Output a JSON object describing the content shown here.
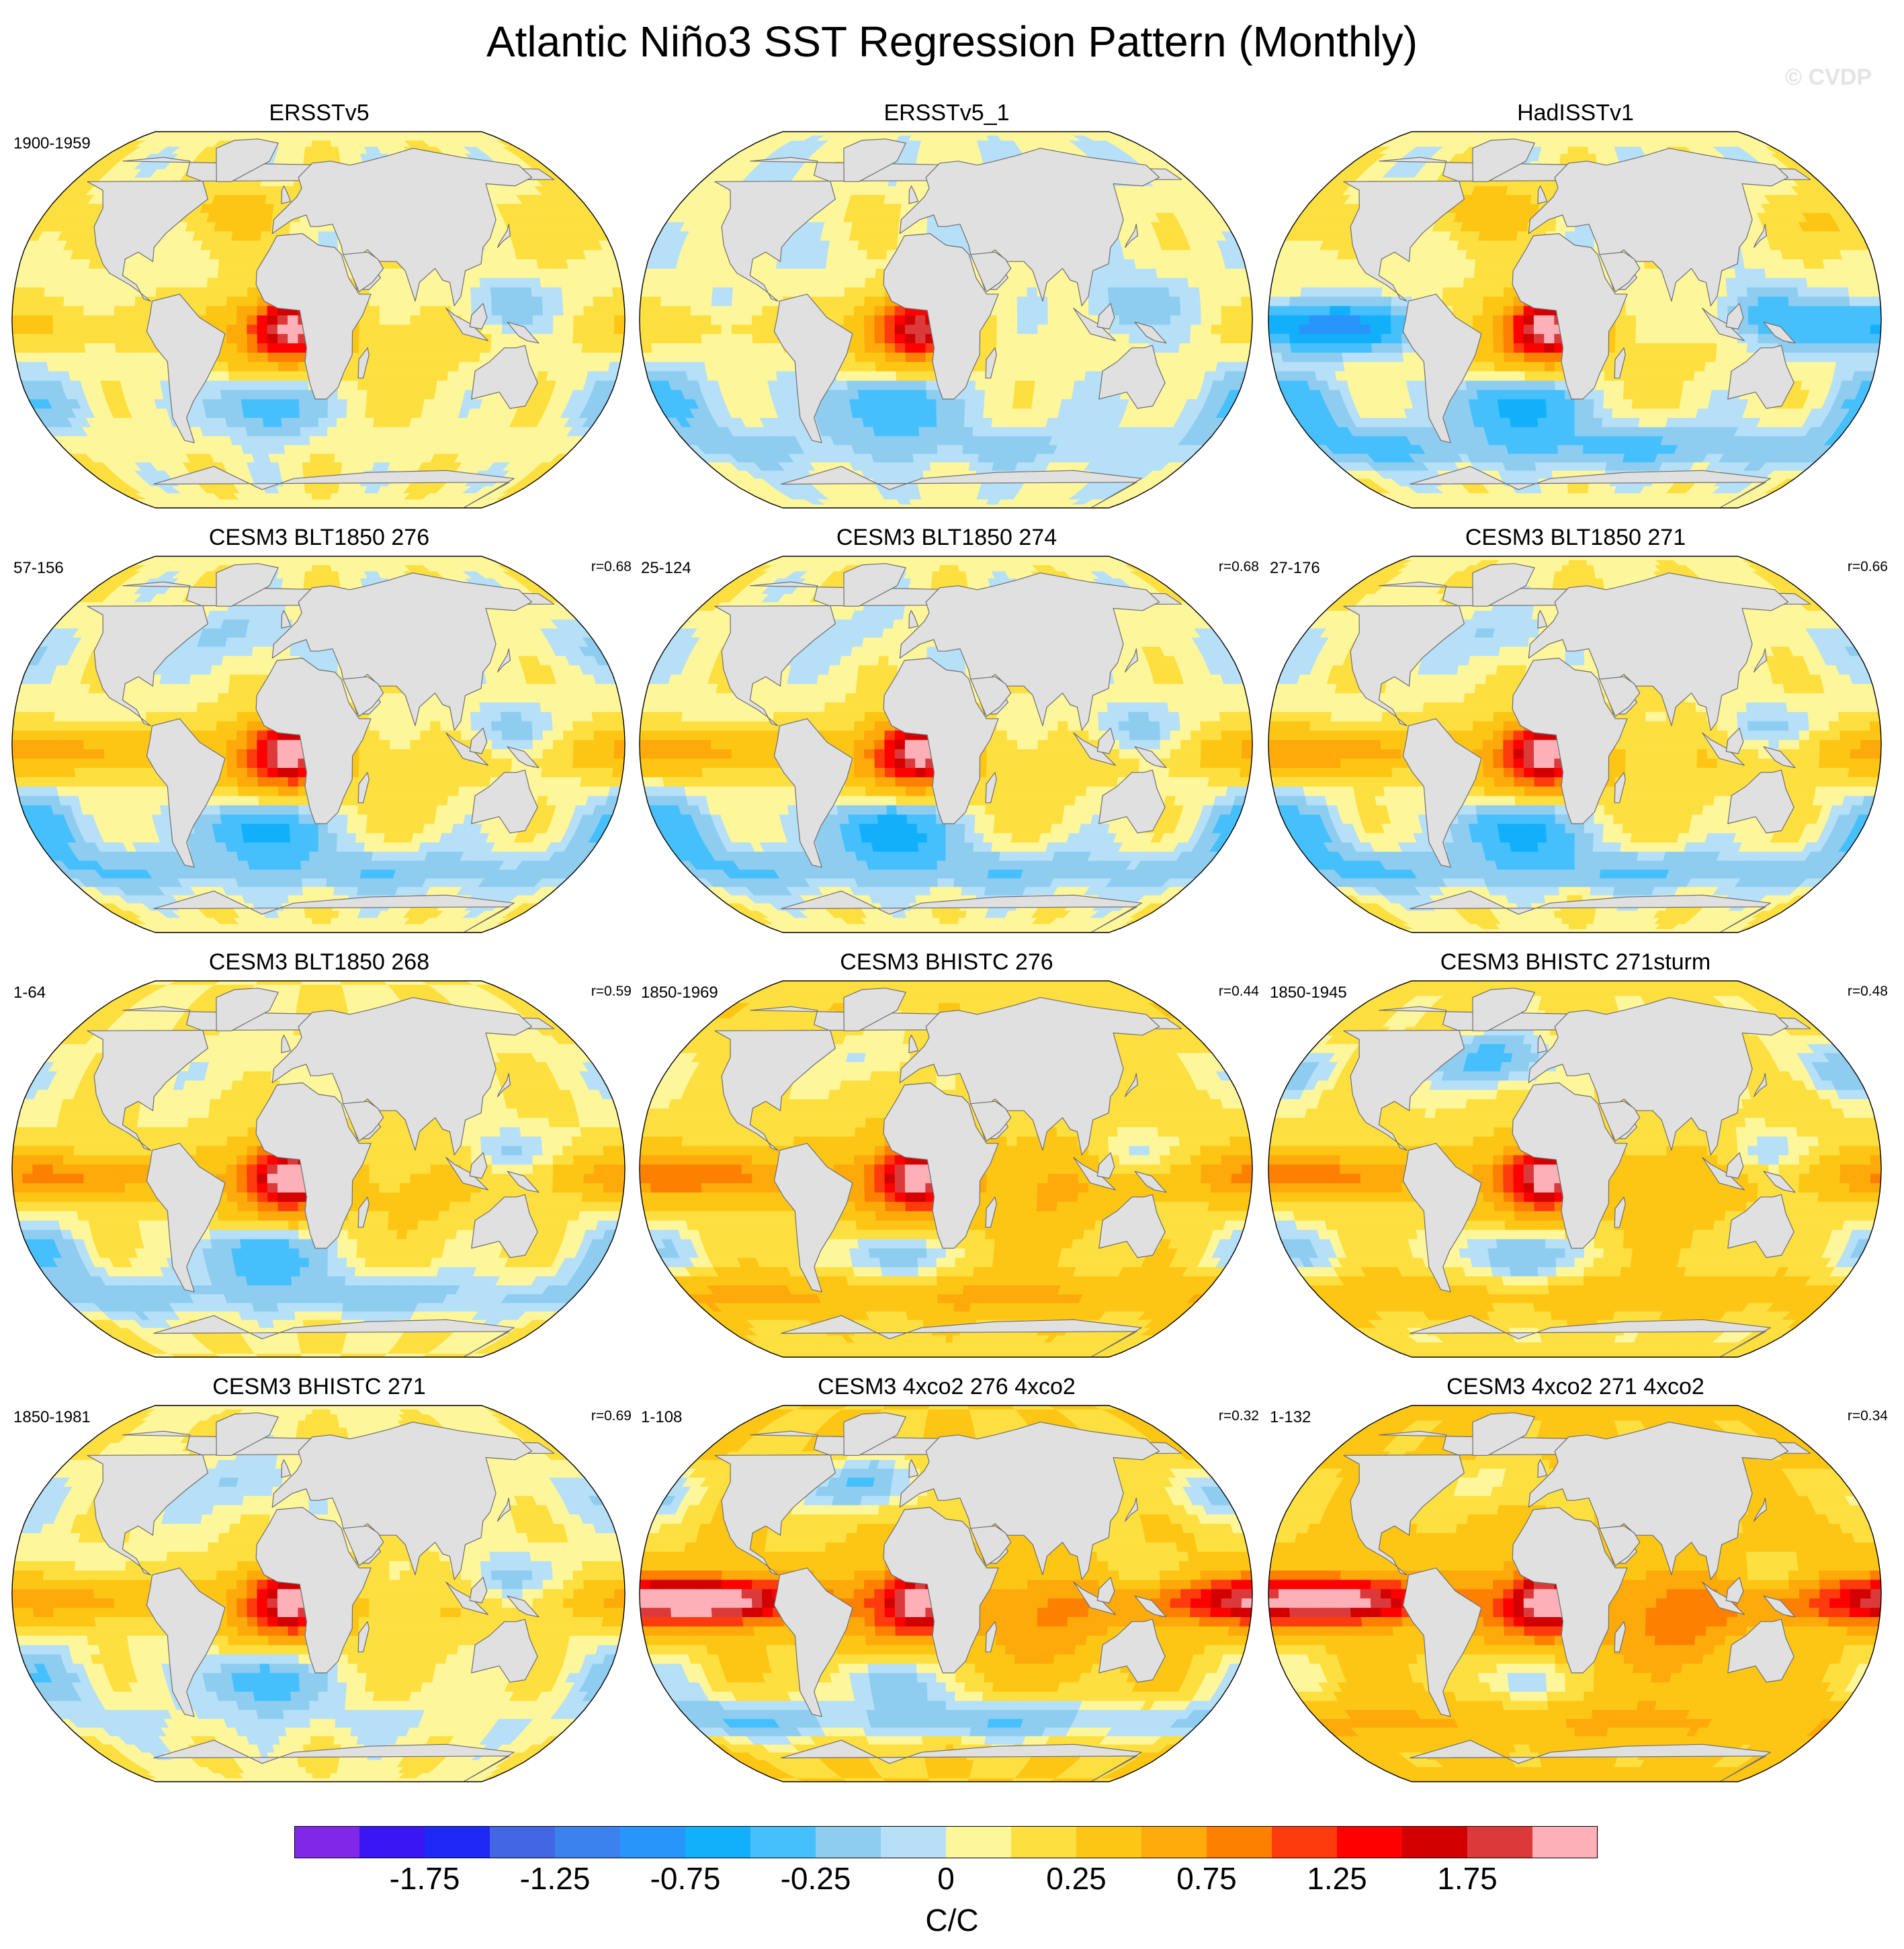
{
  "figure": {
    "title": "Atlantic Niño3 SST Regression Pattern (Monthly)",
    "watermark": "© CVDP"
  },
  "chart_data": {
    "type": "heatmap",
    "projection": "Robinson (global)",
    "variable": "SST regression onto Atlantic Niño3 index",
    "colors": {
      "land": "#e0e0e0",
      "coastline": "#6e6e6e",
      "map_border": "#000000"
    },
    "levels": [
      -2.0,
      -1.75,
      -1.5,
      -1.25,
      -1.0,
      -0.75,
      -0.5,
      -0.25,
      -0.1,
      0,
      0.1,
      0.25,
      0.5,
      0.75,
      1.0,
      1.25,
      1.5,
      1.75,
      2.0
    ],
    "colorbar": {
      "colors": [
        "#8128e8",
        "#3a16f4",
        "#1d29f4",
        "#4266e4",
        "#3c82ee",
        "#2895fb",
        "#12b0fb",
        "#46c0fc",
        "#8ecdf0",
        "#b6dff8",
        "#fef69b",
        "#fedf40",
        "#fec614",
        "#feaa0a",
        "#fe8000",
        "#fe3b0c",
        "#fe0000",
        "#d20000",
        "#dc3a3a",
        "#feb0b8"
      ],
      "tick_labels": [
        "-1.75",
        "-1.25",
        "-0.75",
        "-0.25",
        "0",
        "0.25",
        "0.75",
        "1.25",
        "1.75"
      ],
      "unit": "C/C"
    },
    "panels": [
      {
        "title": "ERSSTv5",
        "years": "1900-1959",
        "r": "",
        "baseline": 0.06,
        "pac_eq": 0.12,
        "na_sub": 0.3,
        "so_band": 0.0,
        "cold_tongue": -0.5,
        "gulf_guinea": 1.45
      },
      {
        "title": "ERSSTv5_1",
        "years": "",
        "r": "",
        "baseline": 0.02,
        "pac_eq": 0.1,
        "na_sub": 0.1,
        "so_band": -0.15,
        "cold_tongue": -0.6,
        "gulf_guinea": 1.3
      },
      {
        "title": "HadISSTv1",
        "years": "",
        "r": "",
        "baseline": 0.05,
        "pac_eq": -0.55,
        "na_sub": 0.4,
        "so_band": -0.35,
        "cold_tongue": -0.8,
        "gulf_guinea": 1.5
      },
      {
        "title": "CESM3 BLT1850 276",
        "years": "57-156",
        "r": "r=0.68",
        "baseline": 0.06,
        "pac_eq": 0.35,
        "na_sub": -0.2,
        "so_band": -0.3,
        "cold_tongue": -0.75,
        "gulf_guinea": 1.55
      },
      {
        "title": "CESM3 BLT1850 274",
        "years": "25-124",
        "r": "r=0.68",
        "baseline": 0.06,
        "pac_eq": 0.35,
        "na_sub": -0.1,
        "so_band": -0.3,
        "cold_tongue": -0.85,
        "gulf_guinea": 1.5
      },
      {
        "title": "CESM3 BLT1850 271",
        "years": "27-176",
        "r": "r=0.66",
        "baseline": 0.08,
        "pac_eq": 0.4,
        "na_sub": -0.2,
        "so_band": -0.35,
        "cold_tongue": -0.8,
        "gulf_guinea": 1.55
      },
      {
        "title": "CESM3 BLT1850 268",
        "years": "1-64",
        "r": "r=0.59",
        "baseline": 0.1,
        "pac_eq": 0.45,
        "na_sub": -0.1,
        "so_band": -0.3,
        "cold_tongue": -0.65,
        "gulf_guinea": 1.6
      },
      {
        "title": "CESM3 BHISTC 276",
        "years": "1850-1969",
        "r": "r=0.44",
        "baseline": 0.18,
        "pac_eq": 0.5,
        "na_sub": -0.2,
        "so_band": 0.4,
        "cold_tongue": -0.45,
        "gulf_guinea": 1.45
      },
      {
        "title": "CESM3 BHISTC 271sturm",
        "years": "1850-1945",
        "r": "r=0.48",
        "baseline": 0.15,
        "pac_eq": 0.45,
        "na_sub": -0.5,
        "so_band": 0.3,
        "cold_tongue": -0.5,
        "gulf_guinea": 1.45
      },
      {
        "title": "CESM3 BHISTC 271",
        "years": "1850-1981",
        "r": "r=0.69",
        "baseline": 0.08,
        "pac_eq": 0.35,
        "na_sub": -0.2,
        "so_band": -0.1,
        "cold_tongue": -0.55,
        "gulf_guinea": 1.5
      },
      {
        "title": "CESM3 4xco2 276 4xco2",
        "years": "1-108",
        "r": "r=0.32",
        "baseline": 0.25,
        "pac_eq": 1.5,
        "na_sub": -0.55,
        "so_band": -0.5,
        "cold_tongue": -0.5,
        "gulf_guinea": 1.4
      },
      {
        "title": "CESM3 4xco2 271 4xco2",
        "years": "1-132",
        "r": "r=0.34",
        "baseline": 0.3,
        "pac_eq": 1.3,
        "na_sub": -0.25,
        "so_band": 0.25,
        "cold_tongue": -0.45,
        "gulf_guinea": 1.45
      }
    ]
  }
}
